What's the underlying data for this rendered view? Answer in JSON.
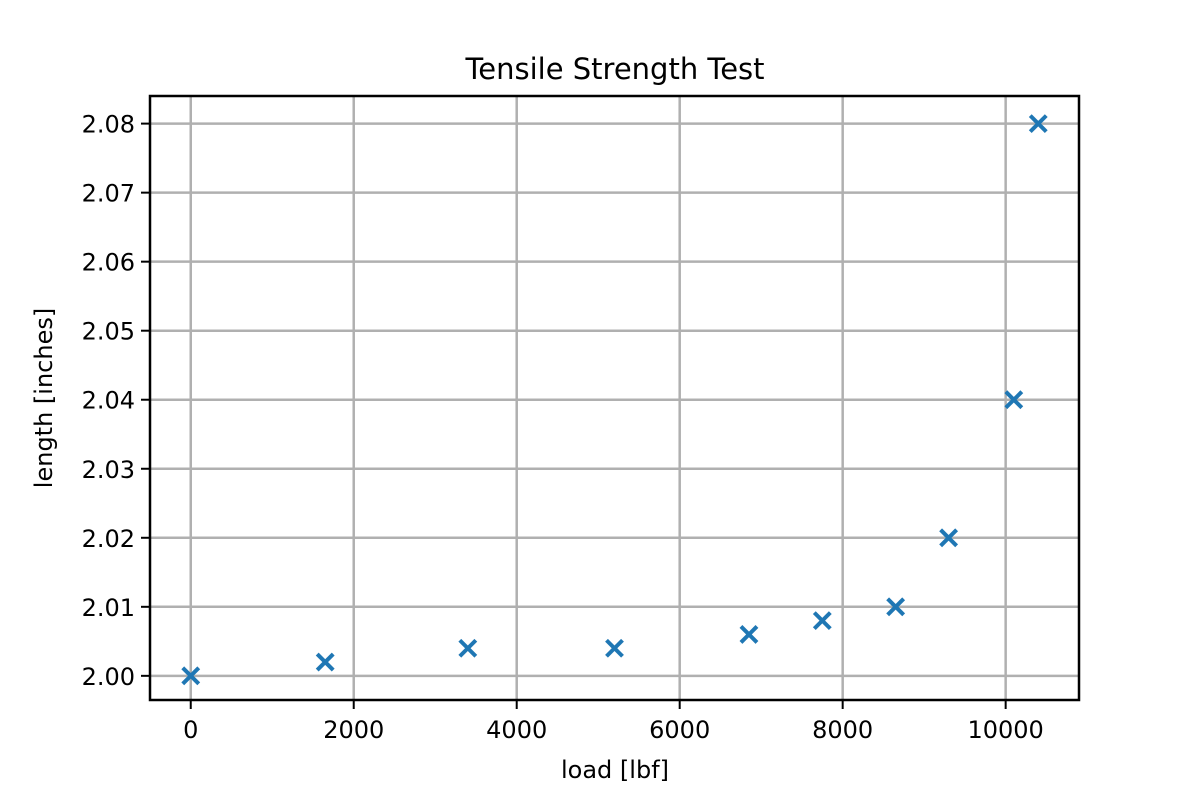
{
  "chart_data": {
    "type": "scatter",
    "title": "Tensile Strength Test",
    "xlabel": "load [lbf]",
    "ylabel": "length [inches]",
    "xlim": [
      -500,
      10900
    ],
    "ylim": [
      1.9965,
      2.084
    ],
    "grid": true,
    "marker": "x",
    "color": "#1f77b4",
    "xticks": [
      0,
      2000,
      4000,
      6000,
      8000,
      10000
    ],
    "xtick_labels": [
      "0",
      "2000",
      "4000",
      "6000",
      "8000",
      "10000"
    ],
    "yticks": [
      2.0,
      2.01,
      2.02,
      2.03,
      2.04,
      2.05,
      2.06,
      2.07,
      2.08
    ],
    "ytick_labels": [
      "2.00",
      "2.01",
      "2.02",
      "2.03",
      "2.04",
      "2.05",
      "2.06",
      "2.07",
      "2.08"
    ],
    "series": [
      {
        "x": [
          0,
          1650,
          3400,
          5200,
          6850,
          7750,
          8650,
          9300,
          10100,
          10400
        ],
        "y": [
          2.0,
          2.002,
          2.004,
          2.004,
          2.006,
          2.008,
          2.01,
          2.02,
          2.04,
          2.08
        ]
      }
    ]
  }
}
